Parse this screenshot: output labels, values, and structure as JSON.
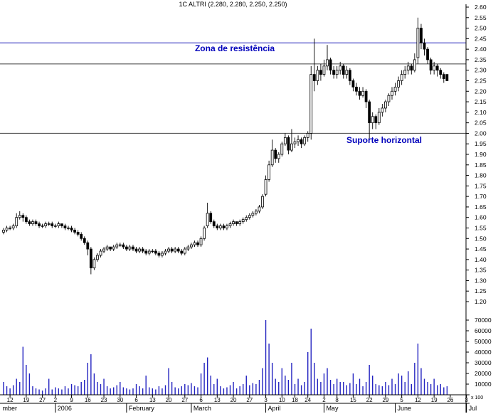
{
  "window": {
    "title": "1C ALTRI (2.280, 2.280, 2.250, 2.250)"
  },
  "annotations": {
    "resistance": "Zona de resistência",
    "support": "Suporte horizontal"
  },
  "colors": {
    "volume_bar": "#2222c0",
    "candle_up_fill": "#ffffff",
    "candle_down_fill": "#000000",
    "candle_stroke": "#000000",
    "axis": "#000000",
    "annotation": "#0000bb",
    "resistance_line": "#2020b8",
    "support_line": "#404040"
  },
  "chart_data": {
    "type": "candlestick",
    "title": "1C ALTRI (2.280, 2.280, 2.250, 2.250)",
    "instrument": "ALTRI",
    "last_quote": {
      "open": 2.28,
      "high": 2.28,
      "low": 2.25,
      "close": 2.25
    },
    "price_axis": {
      "side": "right",
      "min": 1.2,
      "max": 2.6,
      "step": 0.05
    },
    "volume_axis": {
      "min": 0,
      "max": 70000,
      "step": 10000,
      "note": "x 100"
    },
    "levels": [
      {
        "name": "resistance-zone-line",
        "price": 2.43,
        "color": "#2020b8"
      },
      {
        "name": "secondary-resistance-line",
        "price": 2.33,
        "color": "#404040"
      },
      {
        "name": "horizontal-support-line",
        "price": 2.0,
        "color": "#404040"
      }
    ],
    "x_ticks": [
      {
        "label": "12",
        "i": 2
      },
      {
        "label": "19",
        "i": 7
      },
      {
        "label": "27",
        "i": 12
      },
      {
        "label": "2",
        "i": 16
      },
      {
        "label": "9",
        "i": 21
      },
      {
        "label": "16",
        "i": 26
      },
      {
        "label": "23",
        "i": 31
      },
      {
        "label": "30",
        "i": 36
      },
      {
        "label": "6",
        "i": 41
      },
      {
        "label": "13",
        "i": 46
      },
      {
        "label": "20",
        "i": 51
      },
      {
        "label": "27",
        "i": 56
      },
      {
        "label": "6",
        "i": 61
      },
      {
        "label": "13",
        "i": 66
      },
      {
        "label": "20",
        "i": 71
      },
      {
        "label": "27",
        "i": 76
      },
      {
        "label": "3",
        "i": 81
      },
      {
        "label": "10",
        "i": 86
      },
      {
        "label": "18",
        "i": 90
      },
      {
        "label": "24",
        "i": 94
      },
      {
        "label": "2",
        "i": 99
      },
      {
        "label": "8",
        "i": 103
      },
      {
        "label": "15",
        "i": 108
      },
      {
        "label": "22",
        "i": 113
      },
      {
        "label": "29",
        "i": 118
      },
      {
        "label": "5",
        "i": 123
      },
      {
        "label": "12",
        "i": 128
      },
      {
        "label": "19",
        "i": 133
      },
      {
        "label": "26",
        "i": 138
      },
      {
        "label": "3",
        "i": 143
      }
    ],
    "months": [
      {
        "label": "mber",
        "i": -1
      },
      {
        "label": "2006",
        "i": 16
      },
      {
        "label": "February",
        "i": 38
      },
      {
        "label": "March",
        "i": 58
      },
      {
        "label": "April",
        "i": 81
      },
      {
        "label": "May",
        "i": 99
      },
      {
        "label": "June",
        "i": 121
      },
      {
        "label": "Jul",
        "i": 143
      }
    ],
    "ohlcv": [
      [
        1.53,
        1.55,
        1.52,
        1.54,
        12000
      ],
      [
        1.54,
        1.56,
        1.53,
        1.55,
        8000
      ],
      [
        1.55,
        1.56,
        1.54,
        1.55,
        6000
      ],
      [
        1.55,
        1.57,
        1.54,
        1.56,
        9000
      ],
      [
        1.56,
        1.62,
        1.55,
        1.6,
        15000
      ],
      [
        1.6,
        1.63,
        1.59,
        1.61,
        12000
      ],
      [
        1.61,
        1.62,
        1.58,
        1.6,
        45000
      ],
      [
        1.6,
        1.61,
        1.57,
        1.58,
        28000
      ],
      [
        1.58,
        1.59,
        1.56,
        1.57,
        20000
      ],
      [
        1.57,
        1.59,
        1.56,
        1.58,
        8000
      ],
      [
        1.58,
        1.59,
        1.56,
        1.57,
        6000
      ],
      [
        1.57,
        1.58,
        1.55,
        1.56,
        5000
      ],
      [
        1.56,
        1.57,
        1.55,
        1.56,
        4000
      ],
      [
        1.56,
        1.58,
        1.55,
        1.57,
        6000
      ],
      [
        1.57,
        1.58,
        1.56,
        1.57,
        15000
      ],
      [
        1.57,
        1.58,
        1.55,
        1.56,
        5000
      ],
      [
        1.56,
        1.57,
        1.55,
        1.56,
        7000
      ],
      [
        1.56,
        1.58,
        1.55,
        1.57,
        6000
      ],
      [
        1.57,
        1.57,
        1.55,
        1.56,
        5000
      ],
      [
        1.56,
        1.57,
        1.54,
        1.55,
        8000
      ],
      [
        1.55,
        1.56,
        1.54,
        1.55,
        6000
      ],
      [
        1.55,
        1.56,
        1.53,
        1.54,
        10000
      ],
      [
        1.54,
        1.55,
        1.52,
        1.53,
        9000
      ],
      [
        1.53,
        1.54,
        1.51,
        1.52,
        8000
      ],
      [
        1.52,
        1.53,
        1.49,
        1.5,
        12000
      ],
      [
        1.5,
        1.51,
        1.47,
        1.48,
        14000
      ],
      [
        1.48,
        1.49,
        1.42,
        1.45,
        30000
      ],
      [
        1.45,
        1.46,
        1.33,
        1.36,
        38000
      ],
      [
        1.36,
        1.41,
        1.35,
        1.4,
        20000
      ],
      [
        1.4,
        1.43,
        1.39,
        1.42,
        12000
      ],
      [
        1.42,
        1.45,
        1.41,
        1.44,
        10000
      ],
      [
        1.44,
        1.46,
        1.43,
        1.45,
        15000
      ],
      [
        1.45,
        1.47,
        1.44,
        1.46,
        8000
      ],
      [
        1.46,
        1.46,
        1.44,
        1.45,
        6000
      ],
      [
        1.45,
        1.47,
        1.44,
        1.46,
        7000
      ],
      [
        1.46,
        1.48,
        1.45,
        1.47,
        9000
      ],
      [
        1.47,
        1.48,
        1.46,
        1.47,
        12000
      ],
      [
        1.47,
        1.48,
        1.45,
        1.46,
        7000
      ],
      [
        1.46,
        1.47,
        1.44,
        1.45,
        6000
      ],
      [
        1.45,
        1.47,
        1.44,
        1.46,
        5000
      ],
      [
        1.46,
        1.47,
        1.44,
        1.45,
        6000
      ],
      [
        1.45,
        1.46,
        1.43,
        1.44,
        10000
      ],
      [
        1.44,
        1.46,
        1.43,
        1.45,
        8000
      ],
      [
        1.45,
        1.46,
        1.43,
        1.44,
        6000
      ],
      [
        1.44,
        1.45,
        1.42,
        1.43,
        18000
      ],
      [
        1.43,
        1.45,
        1.42,
        1.44,
        7000
      ],
      [
        1.44,
        1.45,
        1.43,
        1.44,
        6000
      ],
      [
        1.44,
        1.45,
        1.42,
        1.43,
        5000
      ],
      [
        1.43,
        1.44,
        1.41,
        1.42,
        8000
      ],
      [
        1.42,
        1.44,
        1.41,
        1.43,
        6000
      ],
      [
        1.43,
        1.45,
        1.42,
        1.44,
        9000
      ],
      [
        1.44,
        1.46,
        1.43,
        1.45,
        25000
      ],
      [
        1.45,
        1.46,
        1.43,
        1.44,
        12000
      ],
      [
        1.44,
        1.46,
        1.43,
        1.45,
        7000
      ],
      [
        1.45,
        1.46,
        1.43,
        1.44,
        6000
      ],
      [
        1.44,
        1.45,
        1.42,
        1.43,
        8000
      ],
      [
        1.43,
        1.46,
        1.42,
        1.45,
        10000
      ],
      [
        1.45,
        1.47,
        1.44,
        1.46,
        9000
      ],
      [
        1.46,
        1.48,
        1.45,
        1.47,
        11000
      ],
      [
        1.47,
        1.49,
        1.46,
        1.48,
        8000
      ],
      [
        1.48,
        1.49,
        1.46,
        1.47,
        7000
      ],
      [
        1.47,
        1.51,
        1.46,
        1.5,
        20000
      ],
      [
        1.5,
        1.56,
        1.49,
        1.55,
        30000
      ],
      [
        1.56,
        1.67,
        1.55,
        1.62,
        35000
      ],
      [
        1.62,
        1.63,
        1.57,
        1.58,
        18000
      ],
      [
        1.58,
        1.59,
        1.55,
        1.56,
        10000
      ],
      [
        1.56,
        1.57,
        1.54,
        1.55,
        15000
      ],
      [
        1.55,
        1.57,
        1.54,
        1.56,
        8000
      ],
      [
        1.56,
        1.57,
        1.54,
        1.55,
        6000
      ],
      [
        1.55,
        1.57,
        1.54,
        1.56,
        7000
      ],
      [
        1.56,
        1.58,
        1.55,
        1.57,
        9000
      ],
      [
        1.57,
        1.59,
        1.56,
        1.58,
        12000
      ],
      [
        1.58,
        1.58,
        1.56,
        1.57,
        6000
      ],
      [
        1.57,
        1.59,
        1.56,
        1.58,
        8000
      ],
      [
        1.58,
        1.6,
        1.57,
        1.59,
        10000
      ],
      [
        1.59,
        1.61,
        1.58,
        1.6,
        18000
      ],
      [
        1.6,
        1.62,
        1.59,
        1.61,
        9000
      ],
      [
        1.61,
        1.63,
        1.6,
        1.62,
        11000
      ],
      [
        1.62,
        1.64,
        1.61,
        1.63,
        10000
      ],
      [
        1.63,
        1.66,
        1.62,
        1.65,
        14000
      ],
      [
        1.65,
        1.71,
        1.64,
        1.7,
        25000
      ],
      [
        1.71,
        1.8,
        1.7,
        1.78,
        70000
      ],
      [
        1.78,
        1.87,
        1.77,
        1.85,
        48000
      ],
      [
        1.85,
        1.97,
        1.84,
        1.92,
        30000
      ],
      [
        1.92,
        1.93,
        1.86,
        1.88,
        15000
      ],
      [
        1.88,
        1.91,
        1.86,
        1.9,
        12000
      ],
      [
        1.9,
        1.96,
        1.89,
        1.95,
        25000
      ],
      [
        1.95,
        2.0,
        1.94,
        1.98,
        18000
      ],
      [
        1.98,
        1.99,
        1.9,
        1.92,
        14000
      ],
      [
        1.92,
        2.02,
        1.91,
        1.95,
        30000
      ],
      [
        1.95,
        1.98,
        1.93,
        1.96,
        10000
      ],
      [
        1.96,
        1.99,
        1.94,
        1.97,
        15000
      ],
      [
        1.97,
        1.98,
        1.93,
        1.95,
        9000
      ],
      [
        1.95,
        1.99,
        1.94,
        1.98,
        12000
      ],
      [
        1.98,
        2.01,
        1.96,
        2.0,
        40000
      ],
      [
        2.0,
        2.32,
        1.97,
        2.28,
        62000
      ],
      [
        2.28,
        2.45,
        2.2,
        2.25,
        30000
      ],
      [
        2.25,
        2.32,
        2.23,
        2.3,
        15000
      ],
      [
        2.3,
        2.33,
        2.25,
        2.28,
        12000
      ],
      [
        2.28,
        2.35,
        2.27,
        2.32,
        20000
      ],
      [
        2.32,
        2.42,
        2.3,
        2.35,
        25000
      ],
      [
        2.35,
        2.36,
        2.28,
        2.3,
        14000
      ],
      [
        2.3,
        2.32,
        2.26,
        2.28,
        10000
      ],
      [
        2.28,
        2.32,
        2.26,
        2.3,
        15000
      ],
      [
        2.3,
        2.34,
        2.28,
        2.32,
        12000
      ],
      [
        2.32,
        2.33,
        2.26,
        2.28,
        12000
      ],
      [
        2.28,
        2.32,
        2.26,
        2.3,
        9000
      ],
      [
        2.3,
        2.31,
        2.23,
        2.25,
        11000
      ],
      [
        2.25,
        2.26,
        2.2,
        2.22,
        20000
      ],
      [
        2.22,
        2.24,
        2.18,
        2.2,
        10000
      ],
      [
        2.2,
        2.22,
        2.16,
        2.18,
        15000
      ],
      [
        2.18,
        2.22,
        2.17,
        2.2,
        8000
      ],
      [
        2.2,
        2.21,
        2.12,
        2.15,
        12000
      ],
      [
        2.15,
        2.16,
        1.97,
        2.05,
        28000
      ],
      [
        2.05,
        2.1,
        2.02,
        2.08,
        18000
      ],
      [
        2.08,
        2.09,
        2.02,
        2.05,
        10000
      ],
      [
        2.05,
        2.12,
        2.04,
        2.1,
        9000
      ],
      [
        2.1,
        2.14,
        2.08,
        2.12,
        8000
      ],
      [
        2.12,
        2.16,
        2.1,
        2.15,
        12000
      ],
      [
        2.15,
        2.19,
        2.13,
        2.18,
        9000
      ],
      [
        2.18,
        2.22,
        2.16,
        2.2,
        15000
      ],
      [
        2.2,
        2.24,
        2.18,
        2.22,
        10000
      ],
      [
        2.22,
        2.27,
        2.2,
        2.25,
        20000
      ],
      [
        2.25,
        2.3,
        2.23,
        2.28,
        18000
      ],
      [
        2.28,
        2.32,
        2.26,
        2.3,
        12000
      ],
      [
        2.3,
        2.34,
        2.28,
        2.32,
        22000
      ],
      [
        2.32,
        2.33,
        2.28,
        2.3,
        10000
      ],
      [
        2.3,
        2.38,
        2.29,
        2.35,
        30000
      ],
      [
        2.36,
        2.55,
        2.33,
        2.5,
        48000
      ],
      [
        2.5,
        2.52,
        2.4,
        2.43,
        25000
      ],
      [
        2.43,
        2.45,
        2.37,
        2.4,
        15000
      ],
      [
        2.4,
        2.41,
        2.33,
        2.35,
        12000
      ],
      [
        2.35,
        2.36,
        2.28,
        2.3,
        10000
      ],
      [
        2.3,
        2.34,
        2.28,
        2.32,
        15000
      ],
      [
        2.32,
        2.33,
        2.27,
        2.3,
        9000
      ],
      [
        2.3,
        2.31,
        2.26,
        2.28,
        10000
      ],
      [
        2.28,
        2.29,
        2.24,
        2.26,
        7000
      ],
      [
        2.28,
        2.28,
        2.25,
        2.25,
        8000
      ]
    ]
  }
}
